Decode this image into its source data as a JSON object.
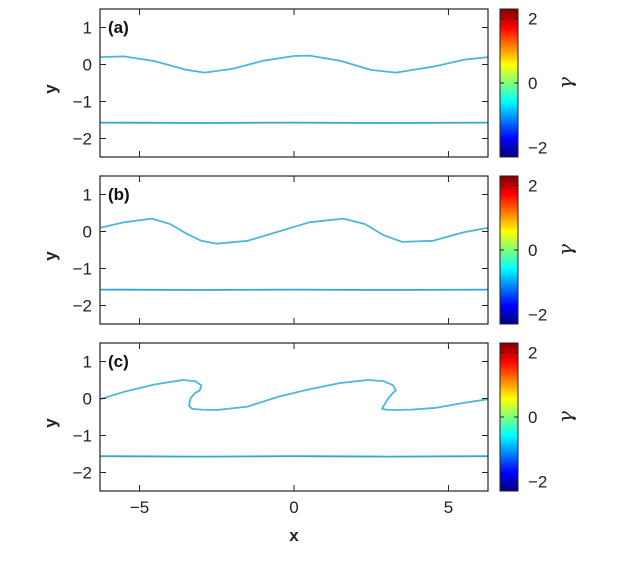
{
  "colors": {
    "upper_curve": "#4fb5da",
    "lower_curve": "#31a8cf",
    "axes": "#222222",
    "colormap": [
      "#00007f",
      "#0000ff",
      "#007fff",
      "#00ffff",
      "#7fff7f",
      "#ffff00",
      "#ff7f00",
      "#ff0000",
      "#7f0000"
    ]
  },
  "chart_data": [
    {
      "type": "line",
      "panel_label": "(a)",
      "xlabel": "",
      "ylabel": "y",
      "xlim": [
        -6.28,
        6.28
      ],
      "ylim": [
        -2.5,
        1.5
      ],
      "xticks": [
        "-5",
        "0",
        "5"
      ],
      "yticks": [
        "1",
        "0",
        "-1",
        "-2"
      ],
      "grid": false,
      "colorbar": {
        "label": "γ",
        "ticks": [
          "2",
          "0",
          "-2"
        ],
        "range": [
          -2.3,
          2.3
        ]
      },
      "series": [
        {
          "x": [
            -6.28,
            -5.5,
            -4.5,
            -3.5,
            -2.9,
            -2.0,
            -1.0,
            0.0,
            0.5,
            1.5,
            2.5,
            3.3,
            4.5,
            5.5,
            6.28
          ],
          "y": [
            0.2,
            0.22,
            0.09,
            -0.14,
            -0.22,
            -0.12,
            0.1,
            0.23,
            0.24,
            0.1,
            -0.15,
            -0.22,
            -0.06,
            0.13,
            0.2
          ]
        },
        {
          "x": [
            -6.28,
            -3,
            0,
            3,
            6.28
          ],
          "y": [
            -1.57,
            -1.58,
            -1.57,
            -1.58,
            -1.57
          ]
        }
      ]
    },
    {
      "type": "line",
      "panel_label": "(b)",
      "xlabel": "",
      "ylabel": "y",
      "xlim": [
        -6.28,
        6.28
      ],
      "ylim": [
        -2.5,
        1.5
      ],
      "xticks": [
        "-5",
        "0",
        "5"
      ],
      "yticks": [
        "1",
        "0",
        "-1",
        "-2"
      ],
      "grid": false,
      "colorbar": {
        "label": "γ",
        "ticks": [
          "2",
          "0",
          "-2"
        ],
        "range": [
          -2.3,
          2.3
        ]
      },
      "series": [
        {
          "x": [
            -6.28,
            -5.5,
            -4.6,
            -4.0,
            -3.5,
            -3.0,
            -2.5,
            -1.5,
            -0.5,
            0.5,
            1.6,
            2.3,
            2.9,
            3.5,
            4.5,
            5.5,
            6.28
          ],
          "y": [
            0.1,
            0.25,
            0.35,
            0.2,
            -0.05,
            -0.25,
            -0.33,
            -0.25,
            0.0,
            0.25,
            0.35,
            0.2,
            -0.1,
            -0.28,
            -0.25,
            -0.02,
            0.1
          ]
        },
        {
          "x": [
            -6.28,
            -3,
            0,
            3,
            6.28
          ],
          "y": [
            -1.57,
            -1.58,
            -1.57,
            -1.58,
            -1.57
          ]
        }
      ]
    },
    {
      "type": "line",
      "panel_label": "(c)",
      "xlabel": "x",
      "ylabel": "y",
      "xlim": [
        -6.28,
        6.28
      ],
      "ylim": [
        -2.5,
        1.5
      ],
      "xticks": [
        "-5",
        "0",
        "5"
      ],
      "yticks": [
        "1",
        "0",
        "-1",
        "-2"
      ],
      "grid": false,
      "colorbar": {
        "label": "γ",
        "ticks": [
          "2",
          "0",
          "-2"
        ],
        "range": [
          -2.3,
          2.3
        ]
      },
      "series": [
        {
          "x": [
            -6.28,
            -5.5,
            -4.5,
            -3.6,
            -3.2,
            -3.0,
            -3.05,
            -3.2,
            -3.35,
            -3.4,
            -3.3,
            -3.0,
            -2.5,
            -1.5,
            -0.5,
            0.5,
            1.5,
            2.4,
            2.9,
            3.2,
            3.3,
            3.2,
            3.05,
            2.9,
            2.85,
            3.0,
            3.3,
            3.8,
            4.6,
            5.5,
            6.28
          ],
          "y": [
            -0.02,
            0.18,
            0.38,
            0.5,
            0.47,
            0.36,
            0.22,
            0.15,
            0.0,
            -0.2,
            -0.28,
            -0.3,
            -0.31,
            -0.22,
            0.05,
            0.25,
            0.42,
            0.5,
            0.47,
            0.36,
            0.22,
            0.15,
            0.0,
            -0.2,
            -0.28,
            -0.3,
            -0.31,
            -0.3,
            -0.25,
            -0.12,
            -0.02
          ]
        },
        {
          "x": [
            -6.28,
            -3,
            0,
            3,
            6.28
          ],
          "y": [
            -1.56,
            -1.57,
            -1.56,
            -1.57,
            -1.56
          ]
        }
      ]
    }
  ]
}
